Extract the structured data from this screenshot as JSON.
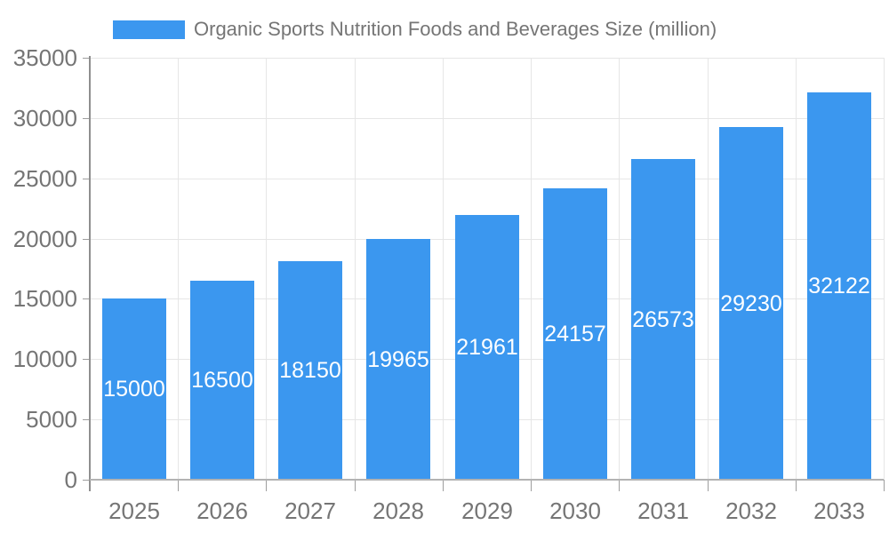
{
  "colors": {
    "bar": "#3B97EF",
    "grid": "#E6E6E6",
    "axis_line": "#8F8F8F",
    "baseline": "#B3B3B3",
    "tick": "#9E9E9E",
    "axis_label": "#757575",
    "value_label": "#FFFFFF",
    "background": "#FFFFFF"
  },
  "legend": {
    "label": "Organic Sports Nutrition Foods and Beverages Size (million)"
  },
  "chart_data": {
    "type": "bar",
    "title": "Organic Sports Nutrition Foods and Beverages Size (million)",
    "categories": [
      "2025",
      "2026",
      "2027",
      "2028",
      "2029",
      "2030",
      "2031",
      "2032",
      "2033"
    ],
    "values": [
      15000,
      16500,
      18150,
      19965,
      21961,
      24157,
      26573,
      29230,
      32122
    ],
    "series": [
      {
        "name": "Organic Sports Nutrition Foods and Beverages Size (million)",
        "values": [
          15000,
          16500,
          18150,
          19965,
          21961,
          24157,
          26573,
          29230,
          32122
        ]
      }
    ],
    "xlabel": "",
    "ylabel": "",
    "ylim": [
      0,
      35000
    ],
    "ytick_step": 5000,
    "yticks": [
      0,
      5000,
      10000,
      15000,
      20000,
      25000,
      30000,
      35000
    ],
    "grid": true,
    "legend_position": "top",
    "value_labels_position": "inside-center"
  }
}
